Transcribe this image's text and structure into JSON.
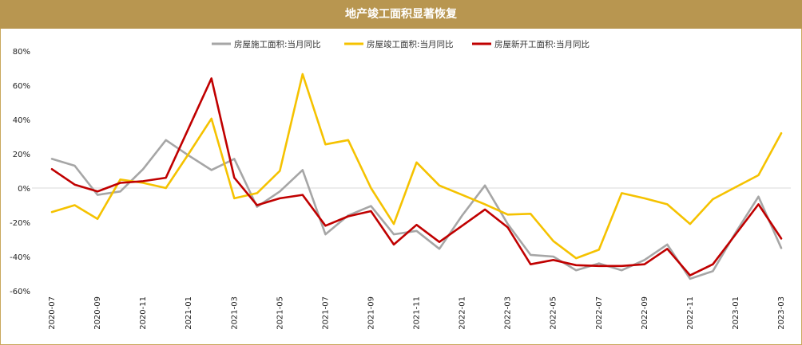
{
  "chart_data": {
    "type": "line",
    "title": "地产竣工面积显著恢复",
    "y_ticks": [
      "80%",
      "60%",
      "40%",
      "20%",
      "0%",
      "-20%",
      "-40%",
      "-60%"
    ],
    "ylim": [
      -60,
      80
    ],
    "x_labels": [
      "2020-07",
      "2020-08",
      "2020-09",
      "2020-10",
      "2020-11",
      "2020-12",
      "2021-01",
      "2021-02",
      "2021-03",
      "2021-04",
      "2021-05",
      "2021-06",
      "2021-07",
      "2021-08",
      "2021-09",
      "2021-10",
      "2021-11",
      "2021-12",
      "2022-01",
      "2022-02",
      "2022-03",
      "2022-04",
      "2022-05",
      "2022-06",
      "2022-07",
      "2022-08",
      "2022-09",
      "2022-10",
      "2022-11",
      "2022-12",
      "2023-01",
      "2023-02",
      "2023-03"
    ],
    "x_tick_labels": [
      "2020-07",
      "2020-09",
      "2020-11",
      "2021-01",
      "2021-03",
      "2021-05",
      "2021-07",
      "2021-09",
      "2021-11",
      "2022-01",
      "2022-03",
      "2022-05",
      "2022-07",
      "2022-09",
      "2022-11",
      "2023-01",
      "2023-03"
    ],
    "series": [
      {
        "name": "房屋施工面积:当月同比",
        "color": "#a6a6a6",
        "values": [
          17,
          13,
          -4,
          -2,
          11,
          28,
          19,
          10.5,
          17,
          -11,
          -2,
          10.5,
          -27,
          -16,
          -10.5,
          -27,
          -25,
          -35.5,
          -16,
          1.5,
          -21,
          -39,
          -40,
          -48,
          -44,
          -48,
          -42,
          -33,
          -53,
          -48.5,
          -26,
          -5,
          -35
        ]
      },
      {
        "name": "房屋竣工面积:当月同比",
        "color": "#f5c200",
        "values": [
          -14,
          -10,
          -18,
          5,
          3,
          0,
          20,
          40.5,
          -6,
          -3,
          10,
          66.5,
          25.5,
          28,
          0,
          -21,
          15,
          1.5,
          -4,
          -9.5,
          -15.5,
          -15,
          -31,
          -41,
          -36,
          -3,
          -6,
          -9.5,
          -21,
          -6.5,
          0.5,
          7.5,
          32
        ]
      },
      {
        "name": "房屋新开工面积:当月同比",
        "color": "#c00000",
        "values": [
          11,
          2,
          -2,
          3,
          4,
          6,
          35,
          64,
          6,
          -10,
          -6,
          -4,
          -22,
          -16.5,
          -13.5,
          -33,
          -21.5,
          -31.5,
          -22,
          -12.5,
          -23,
          -44.5,
          -42,
          -45,
          -45.5,
          -45.5,
          -44.5,
          -35.5,
          -51,
          -44.5,
          -27,
          -9.5,
          -29.5
        ]
      }
    ]
  }
}
